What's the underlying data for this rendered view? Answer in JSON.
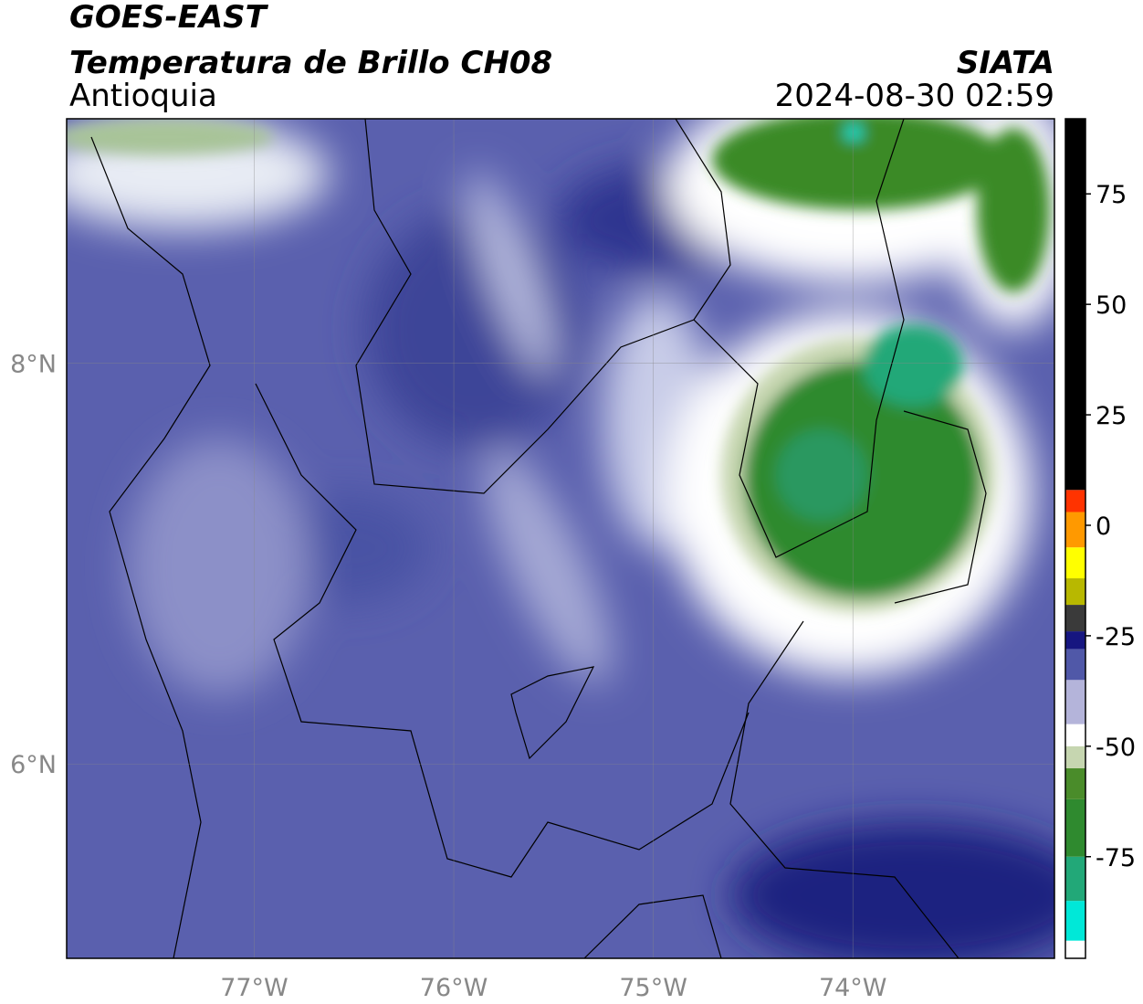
{
  "header": {
    "title": "GOES-EAST",
    "subtitle": "Temperatura de Brillo CH08",
    "region": "Antioquia",
    "source": "SIATA",
    "datetime": "2024-08-30 02:59"
  },
  "map": {
    "xlim": [
      -77.94,
      -72.99
    ],
    "ylim": [
      5.03,
      9.22
    ],
    "xticks": [
      {
        "value": -77,
        "label": "77°W"
      },
      {
        "value": -76,
        "label": "76°W"
      },
      {
        "value": -75,
        "label": "75°W"
      },
      {
        "value": -74,
        "label": "74°W"
      }
    ],
    "yticks": [
      {
        "value": 6,
        "label": "6°N"
      },
      {
        "value": 8,
        "label": "8°N"
      }
    ],
    "grid": true,
    "grid_color": "#888888"
  },
  "colorbar": {
    "lim": [
      -98,
      92
    ],
    "ticks": [
      -75,
      -50,
      -25,
      0,
      25,
      50,
      75
    ],
    "stops": [
      {
        "value": -98,
        "color": "#ffffff"
      },
      {
        "value": -94,
        "color": "#00e8d8"
      },
      {
        "value": -85,
        "color": "#22a878"
      },
      {
        "value": -75,
        "color": "#2f8a2f"
      },
      {
        "value": -62,
        "color": "#4a8c2a"
      },
      {
        "value": -55,
        "color": "#c6d6b0"
      },
      {
        "value": -50,
        "color": "#ffffff"
      },
      {
        "value": -45,
        "color": "#b4b4da"
      },
      {
        "value": -35,
        "color": "#5058a8"
      },
      {
        "value": -28,
        "color": "#161680"
      },
      {
        "value": -24,
        "color": "#3a3a3a"
      },
      {
        "value": -18,
        "color": "#b8b800"
      },
      {
        "value": -12,
        "color": "#ffff00"
      },
      {
        "value": -5,
        "color": "#ff9900"
      },
      {
        "value": 3,
        "color": "#ff3300"
      },
      {
        "value": 8,
        "color": "#000000"
      }
    ]
  }
}
